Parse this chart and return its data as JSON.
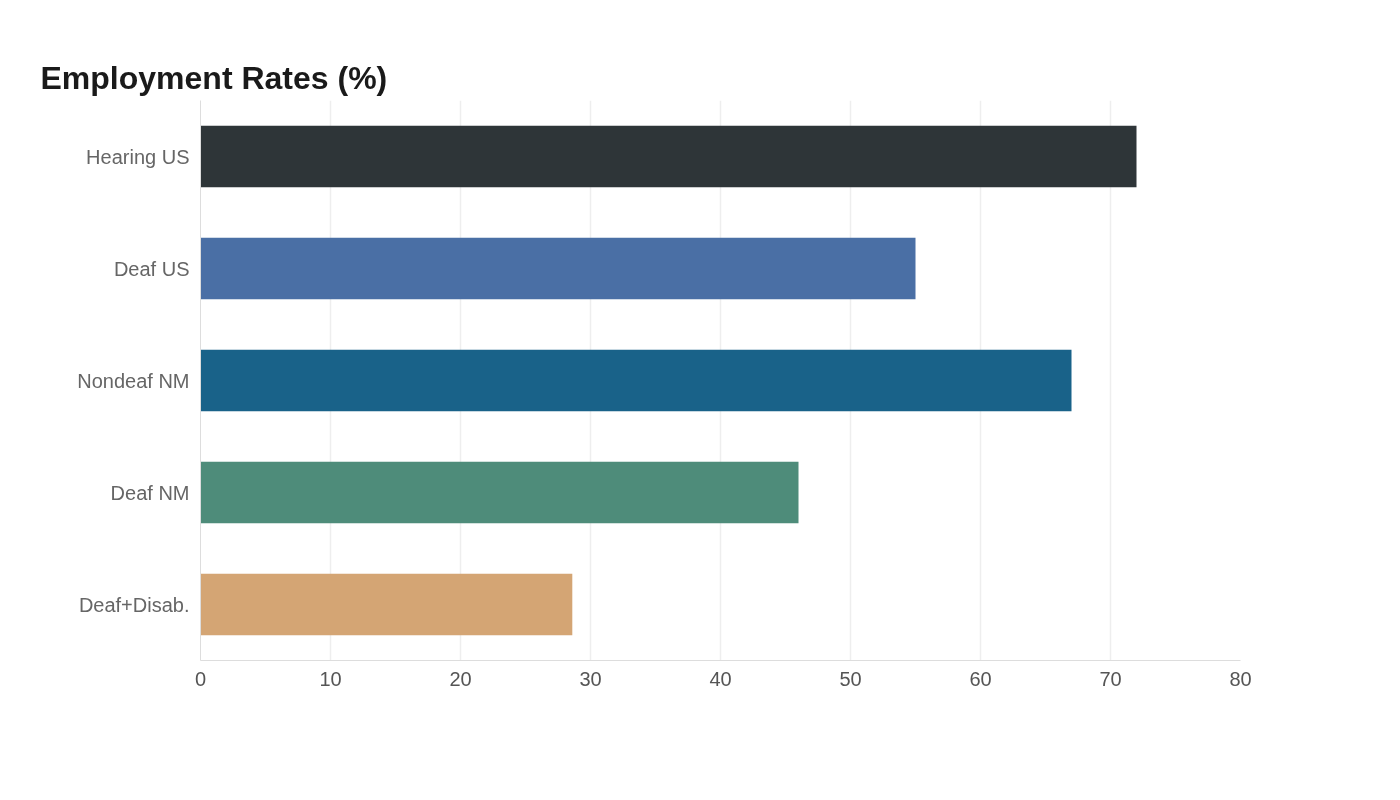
{
  "chart_data": {
    "type": "bar",
    "orientation": "horizontal",
    "title": "Employment Rates (%)",
    "categories": [
      "Hearing US",
      "Deaf US",
      "Nondeaf NM",
      "Deaf NM",
      "Deaf+Disab."
    ],
    "values": [
      72,
      55,
      67,
      46,
      28.6
    ],
    "colors": [
      "#2e3538",
      "#4a6fa5",
      "#196289",
      "#4e8c7a",
      "#d4a574"
    ],
    "xlim": [
      0,
      80
    ],
    "xticks": [
      0,
      10,
      20,
      30,
      40,
      50,
      60,
      70,
      80
    ],
    "grid": "x"
  }
}
